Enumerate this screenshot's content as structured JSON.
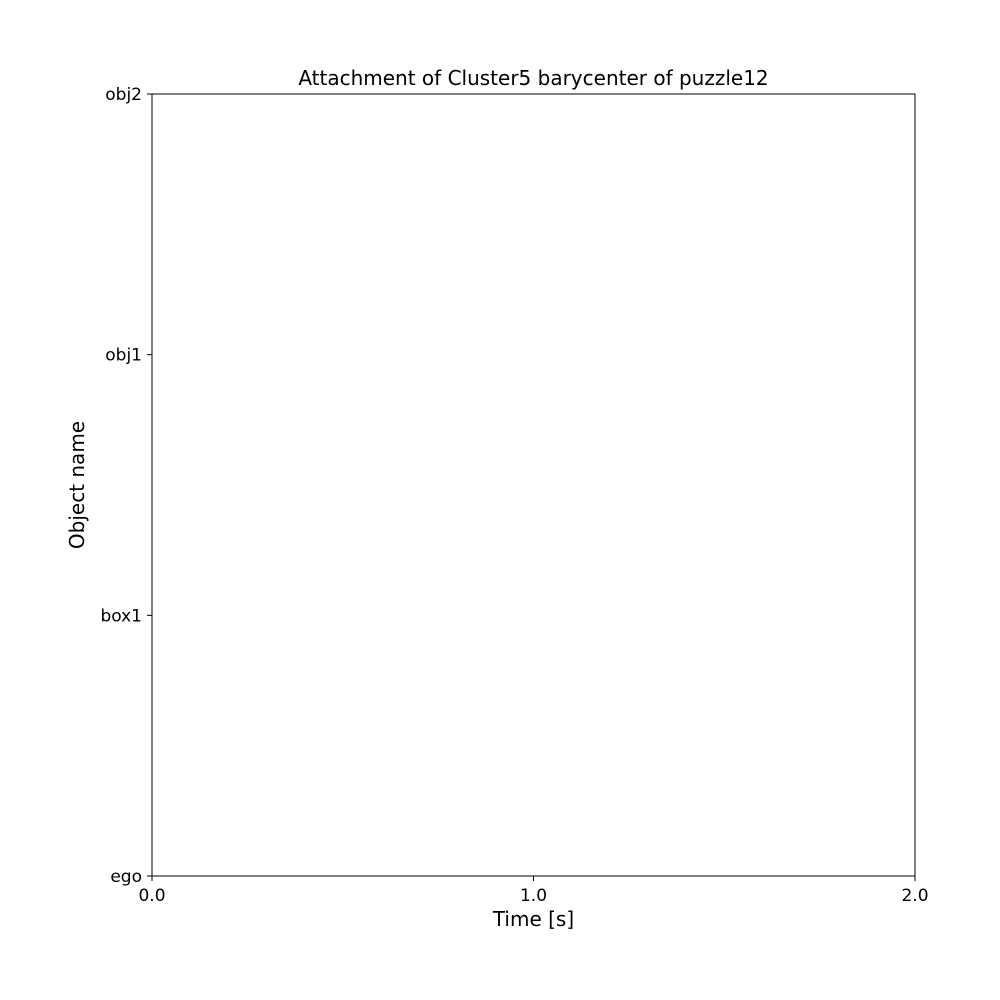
{
  "chart_data": {
    "type": "scatter",
    "title": "Attachment of Cluster5 barycenter of puzzle12",
    "xlabel": "Time [s]",
    "ylabel": "Object name",
    "xlim": [
      0.0,
      2.0
    ],
    "x_ticks": [
      0.0,
      1.0,
      2.0
    ],
    "x_tick_labels": [
      "0.0",
      "1.0",
      "2.0"
    ],
    "y_categories": [
      "ego",
      "box1",
      "obj1",
      "obj2"
    ],
    "grid": false,
    "legend": "none",
    "series": [],
    "colors": {
      "axes": "#000000",
      "background": "#ffffff"
    }
  }
}
